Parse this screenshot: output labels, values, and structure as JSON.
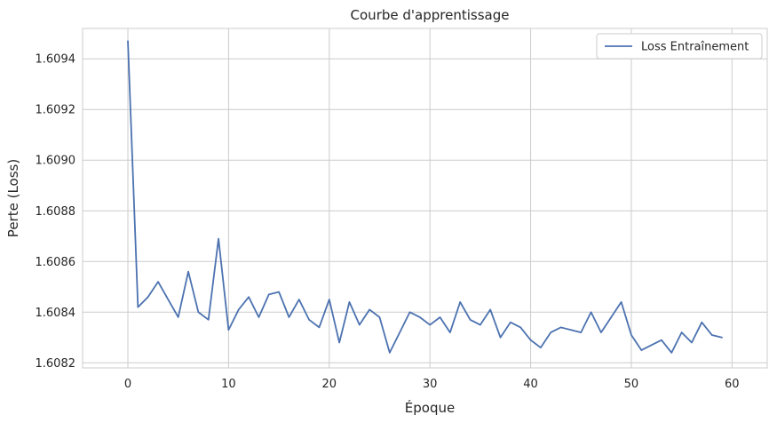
{
  "chart_data": {
    "type": "line",
    "title": "Courbe d'apprentissage",
    "xlabel": "Époque",
    "ylabel": "Perte (Loss)",
    "xlim": [
      -4.5,
      63.5
    ],
    "ylim": [
      1.60818,
      1.60952
    ],
    "xticks": [
      0,
      10,
      20,
      30,
      40,
      50,
      60
    ],
    "xtick_labels": [
      "0",
      "10",
      "20",
      "30",
      "40",
      "50",
      "60"
    ],
    "yticks": [
      1.6082,
      1.6084,
      1.6086,
      1.6088,
      1.609,
      1.6092,
      1.6094
    ],
    "ytick_labels": [
      "1.6082",
      "1.6084",
      "1.6086",
      "1.6088",
      "1.6090",
      "1.6092",
      "1.6094"
    ],
    "grid": true,
    "legend_position": "top-right",
    "series": [
      {
        "name": "Loss Entraînement",
        "color": "#4c72b0",
        "x": [
          0,
          1,
          2,
          3,
          4,
          5,
          6,
          7,
          8,
          9,
          10,
          11,
          12,
          13,
          14,
          15,
          16,
          17,
          18,
          19,
          20,
          21,
          22,
          23,
          24,
          25,
          26,
          27,
          28,
          29,
          30,
          31,
          32,
          33,
          34,
          35,
          36,
          37,
          38,
          39,
          40,
          41,
          42,
          43,
          44,
          45,
          46,
          47,
          48,
          49,
          50,
          51,
          52,
          53,
          54,
          55,
          56,
          57,
          58,
          59
        ],
        "y": [
          1.60947,
          1.60842,
          1.60846,
          1.60852,
          1.60845,
          1.60838,
          1.60856,
          1.6084,
          1.60837,
          1.60869,
          1.60833,
          1.60841,
          1.60846,
          1.60838,
          1.60847,
          1.60848,
          1.60838,
          1.60845,
          1.60837,
          1.60834,
          1.60845,
          1.60828,
          1.60844,
          1.60835,
          1.60841,
          1.60838,
          1.60824,
          1.60832,
          1.6084,
          1.60838,
          1.60835,
          1.60838,
          1.60832,
          1.60844,
          1.60837,
          1.60835,
          1.60841,
          1.6083,
          1.60836,
          1.60834,
          1.60829,
          1.60826,
          1.60832,
          1.60834,
          1.60833,
          1.60832,
          1.6084,
          1.60832,
          1.60838,
          1.60844,
          1.60831,
          1.60825,
          1.60827,
          1.60829,
          1.60824,
          1.60832,
          1.60828,
          1.60836,
          1.60831,
          1.6083
        ]
      }
    ]
  }
}
